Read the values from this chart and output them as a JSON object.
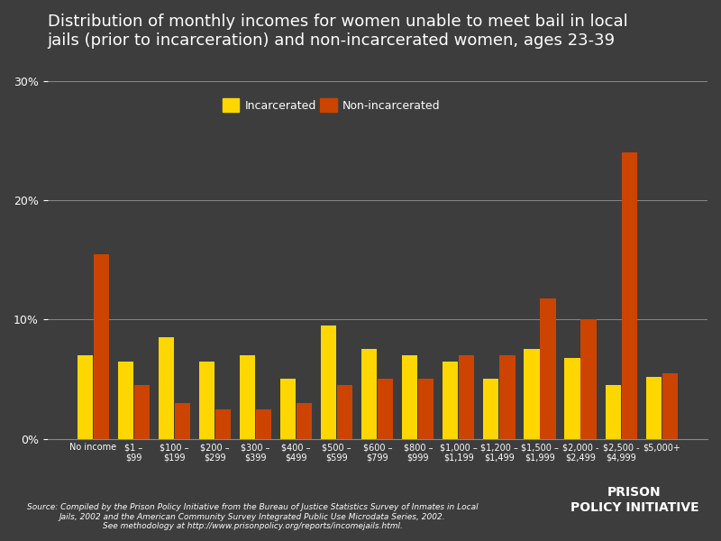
{
  "title": "Distribution of monthly incomes for women unable to meet bail in local\njails (prior to incarceration) and non-incarcerated women, ages 23-39",
  "categories": [
    "No income",
    "$1 –\n$99",
    "$100 –\n$199",
    "$200 –\n$299",
    "$300 –\n$399",
    "$400 –\n$499",
    "$500 –\n$599",
    "$600 –\n$799",
    "$800 –\n$999",
    "$1,000 –\n$1,199",
    "$1,200 –\n$1,499",
    "$1,500 –\n$1,999",
    "$2,000 -\n$2,499",
    "$2,500 -\n$4,999",
    "$5,000+"
  ],
  "incarcerated": [
    7.0,
    6.5,
    8.5,
    6.5,
    7.0,
    5.0,
    9.5,
    7.5,
    7.0,
    6.5,
    5.0,
    7.5,
    6.8,
    4.5,
    5.2
  ],
  "non_incarcerated": [
    15.5,
    4.5,
    3.0,
    2.5,
    2.5,
    3.0,
    4.5,
    5.0,
    5.0,
    7.0,
    7.0,
    11.8,
    10.0,
    24.0,
    5.5
  ],
  "incarcerated_color": "#FFD700",
  "non_incarcerated_color": "#CC4400",
  "background_color": "#3d3d3d",
  "text_color": "#ffffff",
  "grid_color": "#888888",
  "yticks": [
    0,
    10,
    20,
    30
  ],
  "ylim": [
    0,
    32
  ],
  "source_text": "Source: Compiled by the Prison Policy Initiative from the Bureau of Justice Statistics Survey of Inmates in Local\nJails, 2002 and the American Community Survey Integrated Public Use Microdata Series, 2002.\nSee methodology at http://www.prisonpolicy.org/reports/incomejails.html.",
  "legend_incarcerated": "Incarcerated",
  "legend_non_incarcerated": "Non-incarcerated"
}
